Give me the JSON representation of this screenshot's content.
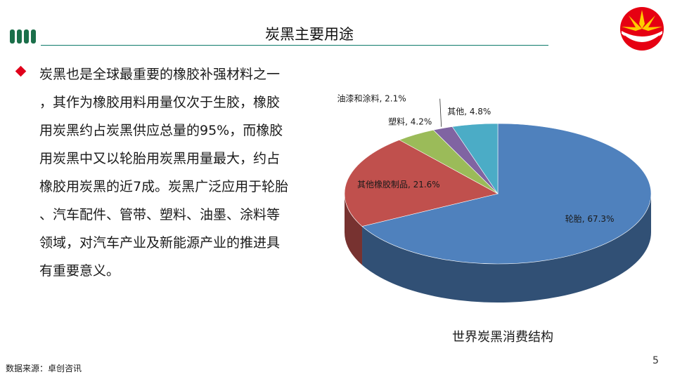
{
  "header": {
    "title": "炭黑主要用途"
  },
  "body": {
    "lines": [
      "炭黑也是全球最重要的橡胶补强材料之一",
      "，其作为橡胶用料用量仅次于生胶，橡胶",
      "用炭黑约占炭黑供应总量的95%，而橡胶",
      "用炭黑中又以轮胎用炭黑用量最大，约占",
      "橡胶用炭黑的近7成。炭黑广泛应用于轮胎",
      "、汽车配件、管带、塑料、油墨、涂料等",
      "领域，对汽车产业及新能源产业的推进具",
      "有重要意义。"
    ]
  },
  "chart_data": {
    "type": "pie",
    "title": "世界炭黑消费结构",
    "slices": [
      {
        "label": "轮胎",
        "value": 67.3,
        "value_text": "67.3%",
        "color": "#4f81bd"
      },
      {
        "label": "其他橡胶制品",
        "value": 21.6,
        "value_text": "21.6%",
        "color": "#c0504d"
      },
      {
        "label": "塑料",
        "value": 4.2,
        "value_text": "4.2%",
        "color": "#9bbb59"
      },
      {
        "label": "油漆和涂料",
        "value": 2.1,
        "value_text": "2.1%",
        "color": "#8064a2"
      },
      {
        "label": "其他",
        "value": 4.8,
        "value_text": "4.8%",
        "color": "#4bacc6"
      }
    ]
  },
  "footer": {
    "source": "数据来源：卓创咨讯",
    "page_number": "5"
  },
  "colors": {
    "accent_green": "#1b6f4a",
    "title_rule": "#0d7a6a",
    "bullet_red": "#e0001b"
  },
  "icons": {
    "logo": "petrochina-logo-icon",
    "bullet": "diamond-bullet-icon",
    "title_bars": "title-bars-icon"
  }
}
